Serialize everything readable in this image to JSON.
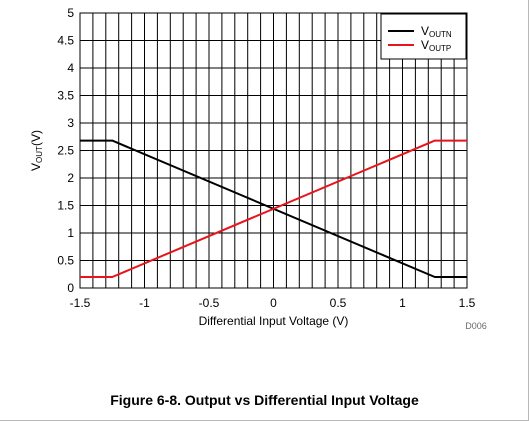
{
  "figure": {
    "caption": "Figure 6-8. Output vs Differential Input Voltage",
    "id_label": "D006"
  },
  "chart_data": {
    "type": "line",
    "title": "",
    "xlabel": "Differential Input Voltage (V)",
    "ylabel": {
      "prefix": "V",
      "subscript": "OUT",
      "suffix": "(V)"
    },
    "xlim": [
      -1.5,
      1.5
    ],
    "ylim": [
      0,
      5
    ],
    "x_ticks": [
      -1.5,
      -1,
      -0.5,
      0,
      0.5,
      1,
      1.5
    ],
    "x_tick_labels": [
      "-1.5",
      "-1",
      "-0.5",
      "0",
      "0.5",
      "1",
      "1.5"
    ],
    "y_ticks": [
      0,
      0.5,
      1,
      1.5,
      2,
      2.5,
      3,
      3.5,
      4,
      4.5,
      5
    ],
    "y_tick_labels": [
      "0",
      "0.5",
      "1",
      "1.5",
      "2",
      "2.5",
      "3",
      "3.5",
      "4",
      "4.5",
      "5"
    ],
    "grid": true,
    "legend_position": "top-right",
    "series": [
      {
        "name_main": "V",
        "name_sub": "OUTN",
        "color": "#000000",
        "points": [
          [
            -1.5,
            2.68
          ],
          [
            -1.25,
            2.68
          ],
          [
            1.25,
            0.2
          ],
          [
            1.5,
            0.2
          ]
        ]
      },
      {
        "name_main": "V",
        "name_sub": "OUTP",
        "color": "#e8141b",
        "points": [
          [
            -1.5,
            0.2
          ],
          [
            -1.25,
            0.2
          ],
          [
            1.25,
            2.68
          ],
          [
            1.5,
            2.68
          ]
        ]
      }
    ]
  }
}
